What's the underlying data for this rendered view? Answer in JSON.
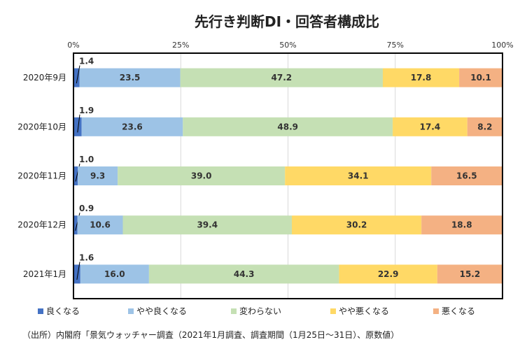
{
  "chart_data": {
    "type": "bar",
    "orientation": "horizontal",
    "stacked": true,
    "title": "先行き判断DI・回答者構成比",
    "x_ticks": [
      "0%",
      "25%",
      "50%",
      "75%",
      "100%"
    ],
    "xlim": [
      0,
      100
    ],
    "grid": "vertical",
    "legend_position": "bottom",
    "categories": [
      "2020年9月",
      "2020年10月",
      "2020年11月",
      "2020年12月",
      "2021年1月"
    ],
    "series": [
      {
        "name": "良くなる",
        "color": "#4472C4",
        "values": [
          1.4,
          1.9,
          1.0,
          0.9,
          1.6
        ]
      },
      {
        "name": "やや良くなる",
        "color": "#9DC3E6",
        "values": [
          23.5,
          23.6,
          9.3,
          10.6,
          16.0
        ]
      },
      {
        "name": "変わらない",
        "color": "#C5E0B4",
        "values": [
          47.2,
          48.9,
          39.0,
          39.4,
          44.3
        ]
      },
      {
        "name": "やや悪くなる",
        "color": "#FFD966",
        "values": [
          17.8,
          17.4,
          34.1,
          30.2,
          22.9
        ]
      },
      {
        "name": "悪くなる",
        "color": "#F4B183",
        "values": [
          10.1,
          8.2,
          16.5,
          18.8,
          15.2
        ]
      }
    ]
  },
  "source_note": "（出所）内閣府「景気ウォッチャー調査（2021年1月調査、調査期間（1月25日～31日）、原数値）"
}
